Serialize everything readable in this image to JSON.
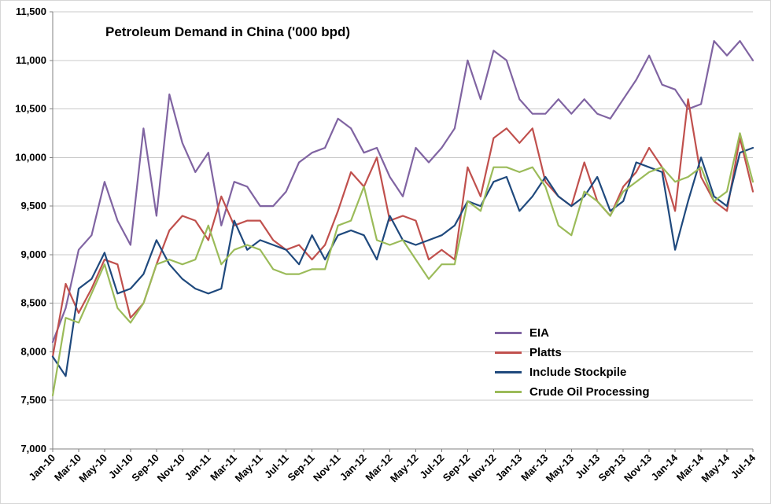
{
  "chart_data": {
    "type": "line",
    "title": "Petroleum Demand in China ('000 bpd)",
    "grid": true,
    "legend_position": "inside-right",
    "ylim": [
      7000,
      11500
    ],
    "ytick_step": 500,
    "x_label_interval": 2,
    "y_tick_labels": [
      "7,000",
      "7,500",
      "8,000",
      "8,500",
      "9,000",
      "9,500",
      "10,000",
      "10,500",
      "11,000",
      "11,500"
    ],
    "categories": [
      "Jan-10",
      "Feb-10",
      "Mar-10",
      "Apr-10",
      "May-10",
      "Jun-10",
      "Jul-10",
      "Aug-10",
      "Sep-10",
      "Oct-10",
      "Nov-10",
      "Dec-10",
      "Jan-11",
      "Feb-11",
      "Mar-11",
      "Apr-11",
      "May-11",
      "Jun-11",
      "Jul-11",
      "Aug-11",
      "Sep-11",
      "Oct-11",
      "Nov-11",
      "Dec-11",
      "Jan-12",
      "Feb-12",
      "Mar-12",
      "Apr-12",
      "May-12",
      "Jun-12",
      "Jul-12",
      "Aug-12",
      "Sep-12",
      "Oct-12",
      "Nov-12",
      "Dec-12",
      "Jan-13",
      "Feb-13",
      "Mar-13",
      "Apr-13",
      "May-13",
      "Jun-13",
      "Jul-13",
      "Aug-13",
      "Sep-13",
      "Oct-13",
      "Nov-13",
      "Dec-13",
      "Jan-14",
      "Feb-14",
      "Mar-14",
      "Apr-14",
      "May-14",
      "Jun-14",
      "Jul-14"
    ],
    "series": [
      {
        "name": "EIA",
        "color": "#8064A2",
        "values": [
          8100,
          8450,
          9050,
          9200,
          9750,
          9350,
          9100,
          10300,
          9400,
          10650,
          10150,
          9850,
          10050,
          9300,
          9750,
          9700,
          9500,
          9500,
          9650,
          9950,
          10050,
          10100,
          10400,
          10300,
          10050,
          10100,
          9800,
          9600,
          10100,
          9950,
          10100,
          10300,
          11000,
          10600,
          11100,
          11000,
          10600,
          10450,
          10450,
          10600,
          10450,
          10600,
          10450,
          10400,
          10600,
          10800,
          11050,
          10750,
          10700,
          10500,
          10550,
          11200,
          11050,
          11200,
          11000
        ]
      },
      {
        "name": "Platts",
        "color": "#C0504D",
        "values": [
          7950,
          8700,
          8400,
          8650,
          8950,
          8900,
          8350,
          8500,
          8900,
          9250,
          9400,
          9350,
          9150,
          9600,
          9300,
          9350,
          9350,
          9150,
          9050,
          9100,
          8950,
          9100,
          9450,
          9850,
          9700,
          10000,
          9350,
          9400,
          9350,
          8950,
          9050,
          8950,
          9900,
          9600,
          10200,
          10300,
          10150,
          10300,
          9750,
          9600,
          9500,
          9950,
          9550,
          9400,
          9700,
          9850,
          10100,
          9900,
          9450,
          10600,
          9800,
          9550,
          9450,
          10200,
          9650
        ]
      },
      {
        "name": "Include Stockpile",
        "color": "#1F497D",
        "values": [
          7950,
          7750,
          8650,
          8750,
          9020,
          8600,
          8650,
          8800,
          9150,
          8900,
          8750,
          8650,
          8600,
          8650,
          9350,
          9050,
          9150,
          9100,
          9050,
          8900,
          9200,
          8950,
          9200,
          9250,
          9200,
          8950,
          9400,
          9150,
          9100,
          9150,
          9200,
          9300,
          9550,
          9500,
          9750,
          9800,
          9450,
          9600,
          9800,
          9600,
          9500,
          9600,
          9800,
          9450,
          9550,
          9950,
          9900,
          9850,
          9050,
          9550,
          10000,
          9600,
          9500,
          10050,
          10100
        ]
      },
      {
        "name": "Crude Oil Processing",
        "color": "#9BBB59",
        "values": [
          7550,
          8350,
          8300,
          8600,
          8900,
          8450,
          8300,
          8500,
          8900,
          8950,
          8900,
          8950,
          9300,
          8900,
          9050,
          9100,
          9050,
          8850,
          8800,
          8800,
          8850,
          8850,
          9300,
          9350,
          9700,
          9150,
          9100,
          9150,
          8950,
          8750,
          8900,
          8900,
          9550,
          9450,
          9900,
          9900,
          9850,
          9900,
          9700,
          9300,
          9200,
          9650,
          9550,
          9400,
          9650,
          9750,
          9850,
          9900,
          9750,
          9800,
          9900,
          9550,
          9650,
          10250,
          9750
        ]
      }
    ]
  }
}
